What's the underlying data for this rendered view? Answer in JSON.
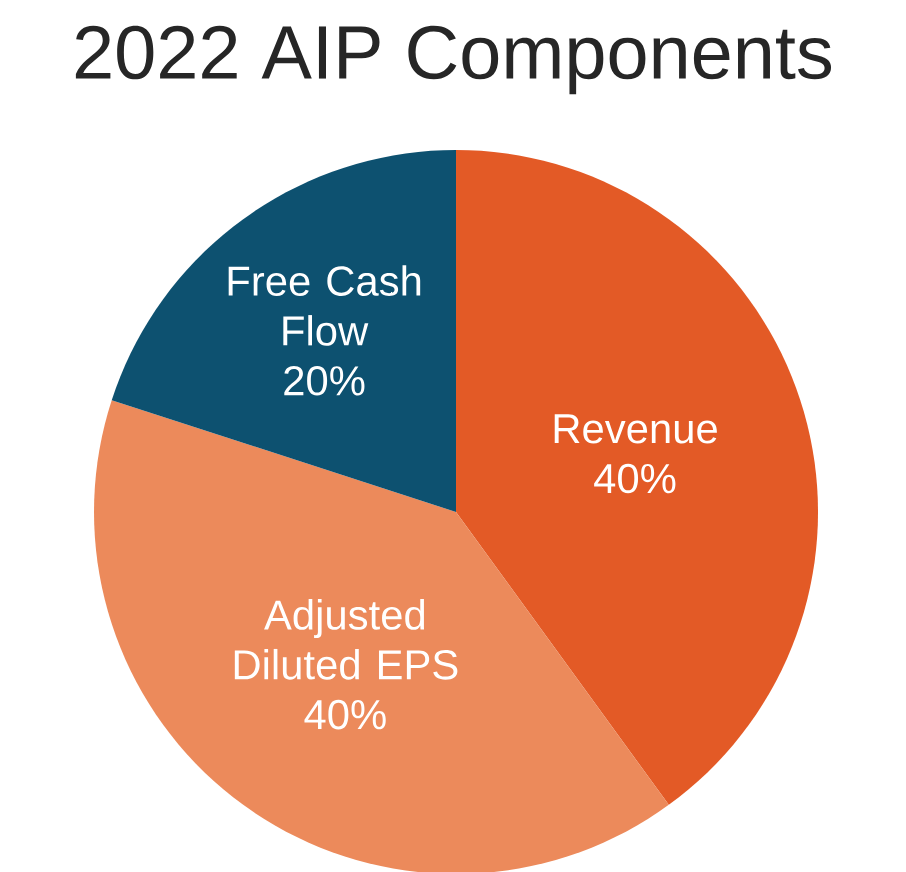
{
  "chart_data": {
    "type": "pie",
    "title": "2022 AIP Components",
    "categories": [
      "Revenue",
      "Adjusted Diluted EPS",
      "Free Cash Flow"
    ],
    "values": [
      40,
      40,
      20
    ],
    "value_labels": [
      "40%",
      "40%",
      "20%"
    ],
    "colors": [
      "#e35a26",
      "#ec8a5b",
      "#0d5170"
    ]
  }
}
